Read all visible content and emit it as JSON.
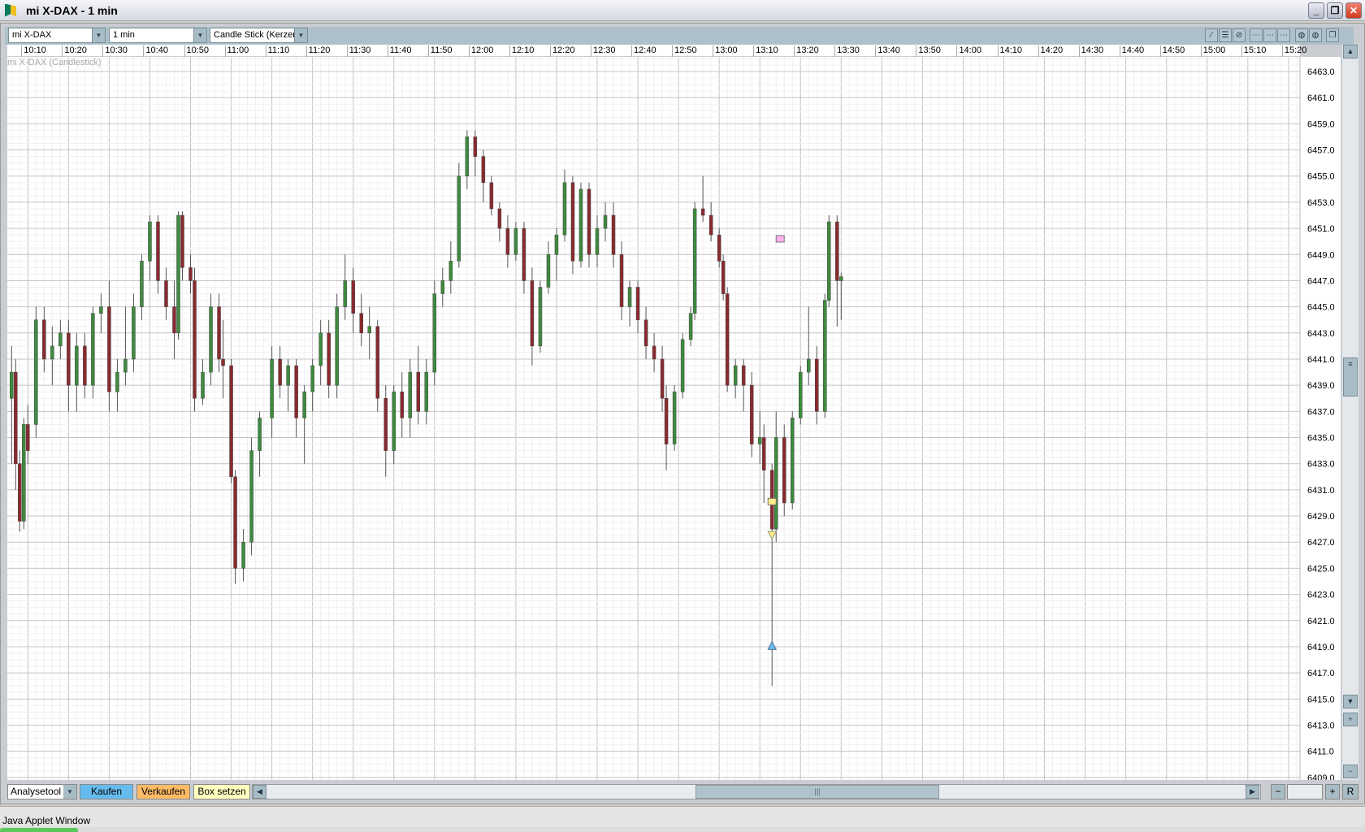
{
  "window": {
    "title": "mi X-DAX - 1 min",
    "minimize": "_",
    "restore": "❐",
    "close": "✕"
  },
  "toolbar": {
    "symbol": "mi X-DAX",
    "interval": "1 min",
    "chart_type": "Candle Stick (Kerzen",
    "tool_icons": [
      "line-draw-icon",
      "horizontal-lines-icon",
      "disabled-tool-icon",
      "grid-1-icon",
      "grid-2-icon",
      "grid-3-icon",
      "circle-icon-1",
      "circle-icon-2",
      "detach-window-icon"
    ]
  },
  "bottom": {
    "analysis": "Analysetool",
    "buy": "Kaufen",
    "sell": "Verkaufen",
    "box": "Box setzen",
    "reset": "R",
    "zoom_out": "−",
    "zoom_in": "+"
  },
  "status": "Java Applet Window",
  "colors": {
    "up": "#3d8b3d",
    "down": "#8a2a2e",
    "buy": "#66bbee",
    "sell": "#ffbb66",
    "box": "#ffffc0",
    "frame": "#aec0ca"
  },
  "chart_data": {
    "type": "candlestick",
    "series_label": "mi X-DAX (Candlestick)",
    "ylim": [
      6409,
      6464
    ],
    "yticks": [
      "6463.0",
      "6461.0",
      "6459.0",
      "6457.0",
      "6455.0",
      "6453.0",
      "6451.0",
      "6449.0",
      "6447.0",
      "6445.0",
      "6443.0",
      "6441.0",
      "6439.0",
      "6437.0",
      "6435.0",
      "6433.0",
      "6431.0",
      "6429.0",
      "6427.0",
      "6425.0",
      "6423.0",
      "6421.0",
      "6419.0",
      "6417.0",
      "6415.0",
      "6413.0",
      "6411.0",
      "6409.0"
    ],
    "xticks": [
      "10:10",
      "10:20",
      "10:30",
      "10:40",
      "10:50",
      "11:00",
      "11:10",
      "11:20",
      "11:30",
      "11:40",
      "11:50",
      "12:00",
      "12:10",
      "12:20",
      "12:30",
      "12:40",
      "12:50",
      "13:00",
      "13:10",
      "13:20",
      "13:30",
      "13:40",
      "13:50",
      "14:00",
      "14:10",
      "14:20",
      "14:30",
      "14:40",
      "14:50",
      "15:00",
      "15:10",
      "15:20"
    ],
    "grid": true,
    "candles": [
      [
        "10:06",
        6438,
        6442,
        6433,
        6440
      ],
      [
        "10:07",
        6440,
        6441,
        6431,
        6433
      ],
      [
        "10:08",
        6433,
        6434,
        6427.8,
        6428.6
      ],
      [
        "10:09",
        6428.6,
        6436.5,
        6428,
        6436
      ],
      [
        "10:10",
        6436,
        6437.5,
        6433,
        6434
      ],
      [
        "10:12",
        6436,
        6445,
        6435,
        6444
      ],
      [
        "10:14",
        6444,
        6445,
        6440,
        6441
      ],
      [
        "10:16",
        6441,
        6443.5,
        6439,
        6442
      ],
      [
        "10:18",
        6442,
        6444,
        6441,
        6443
      ],
      [
        "10:20",
        6443,
        6444,
        6437,
        6439
      ],
      [
        "10:22",
        6439,
        6443,
        6437,
        6442
      ],
      [
        "10:24",
        6442,
        6443,
        6438,
        6439
      ],
      [
        "10:26",
        6439,
        6445,
        6438,
        6444.5
      ],
      [
        "10:28",
        6444.5,
        6446,
        6443,
        6445
      ],
      [
        "10:30",
        6445,
        6447,
        6437,
        6438.5
      ],
      [
        "10:32",
        6438.5,
        6441,
        6437,
        6440
      ],
      [
        "10:34",
        6440,
        6445,
        6439,
        6441
      ],
      [
        "10:36",
        6441,
        6446,
        6440,
        6445
      ],
      [
        "10:38",
        6445,
        6449,
        6444,
        6448.5
      ],
      [
        "10:40",
        6448.5,
        6452,
        6447,
        6451.5
      ],
      [
        "10:42",
        6451.5,
        6452,
        6446,
        6447
      ],
      [
        "10:44",
        6447,
        6448,
        6444,
        6445
      ],
      [
        "10:46",
        6445,
        6447,
        6441,
        6443
      ],
      [
        "10:47",
        6443,
        6452.3,
        6442.5,
        6452
      ],
      [
        "10:48",
        6452,
        6452.3,
        6447,
        6448
      ],
      [
        "10:50",
        6448,
        6449,
        6446,
        6447
      ],
      [
        "10:51",
        6447,
        6448,
        6437,
        6438
      ],
      [
        "10:53",
        6438,
        6441,
        6437.5,
        6440
      ],
      [
        "10:55",
        6440,
        6446,
        6439,
        6445
      ],
      [
        "10:57",
        6445,
        6446,
        6440,
        6441
      ],
      [
        "10:58",
        6441,
        6444,
        6438,
        6440.5
      ],
      [
        "11:00",
        6440.5,
        6441,
        6431.5,
        6432
      ],
      [
        "11:01",
        6432,
        6432.5,
        6423.8,
        6425
      ],
      [
        "11:03",
        6425,
        6428,
        6424,
        6427
      ],
      [
        "11:05",
        6427,
        6435,
        6426,
        6434
      ],
      [
        "11:07",
        6434,
        6437,
        6432,
        6436.5
      ],
      [
        "11:10",
        6436.5,
        6442,
        6435,
        6441
      ],
      [
        "11:12",
        6441,
        6442,
        6438,
        6439
      ],
      [
        "11:14",
        6439,
        6441,
        6437,
        6440.5
      ],
      [
        "11:16",
        6440.5,
        6441,
        6435,
        6436.5
      ],
      [
        "11:18",
        6436.5,
        6439,
        6433,
        6438.5
      ],
      [
        "11:20",
        6438.5,
        6441,
        6437,
        6440.5
      ],
      [
        "11:22",
        6440.5,
        6444,
        6439,
        6443
      ],
      [
        "11:24",
        6443,
        6444,
        6438,
        6439
      ],
      [
        "11:26",
        6439,
        6446,
        6438,
        6445
      ],
      [
        "11:28",
        6445,
        6449,
        6444,
        6447
      ],
      [
        "11:30",
        6447,
        6448,
        6443,
        6444.5
      ],
      [
        "11:32",
        6444.5,
        6446,
        6442,
        6443
      ],
      [
        "11:34",
        6443,
        6445,
        6441,
        6443.5
      ],
      [
        "11:36",
        6443.5,
        6444,
        6437,
        6438
      ],
      [
        "11:38",
        6438,
        6439,
        6432,
        6434
      ],
      [
        "11:40",
        6434,
        6439,
        6433,
        6438.5
      ],
      [
        "11:42",
        6438.5,
        6440,
        6435,
        6436.5
      ],
      [
        "11:44",
        6436.5,
        6441,
        6435,
        6440
      ],
      [
        "11:46",
        6440,
        6442,
        6436,
        6437
      ],
      [
        "11:48",
        6437,
        6441,
        6436,
        6440
      ],
      [
        "11:50",
        6440,
        6447,
        6439,
        6446
      ],
      [
        "11:52",
        6446,
        6448,
        6445,
        6447
      ],
      [
        "11:54",
        6447,
        6450,
        6446,
        6448.5
      ],
      [
        "11:56",
        6448.5,
        6456,
        6448,
        6455
      ],
      [
        "11:58",
        6455,
        6458.5,
        6454,
        6458
      ],
      [
        "12:00",
        6458,
        6458.5,
        6455,
        6456.5
      ],
      [
        "12:02",
        6456.5,
        6457,
        6453,
        6454.5
      ],
      [
        "12:04",
        6454.5,
        6455,
        6452,
        6452.5
      ],
      [
        "12:06",
        6452.5,
        6453,
        6450,
        6451
      ],
      [
        "12:08",
        6451,
        6452,
        6448,
        6449
      ],
      [
        "12:10",
        6449,
        6451.5,
        6448.5,
        6451
      ],
      [
        "12:12",
        6451,
        6451.5,
        6446,
        6447
      ],
      [
        "12:14",
        6447,
        6448,
        6440.5,
        6442
      ],
      [
        "12:16",
        6442,
        6447,
        6441.5,
        6446.5
      ],
      [
        "12:18",
        6446.5,
        6450,
        6446,
        6449
      ],
      [
        "12:20",
        6449,
        6451,
        6447,
        6450.5
      ],
      [
        "12:22",
        6450.5,
        6455.5,
        6450,
        6454.5
      ],
      [
        "12:24",
        6454.5,
        6455,
        6447.5,
        6448.5
      ],
      [
        "12:26",
        6448.5,
        6454.5,
        6448,
        6454
      ],
      [
        "12:28",
        6454,
        6454.5,
        6448,
        6449
      ],
      [
        "12:30",
        6449,
        6452,
        6448,
        6451
      ],
      [
        "12:32",
        6451,
        6453,
        6450,
        6452
      ],
      [
        "12:34",
        6452,
        6453,
        6448,
        6449
      ],
      [
        "12:36",
        6449,
        6450,
        6444,
        6445
      ],
      [
        "12:38",
        6445,
        6447,
        6443.5,
        6446.5
      ],
      [
        "12:40",
        6446.5,
        6447,
        6443,
        6444
      ],
      [
        "12:42",
        6444,
        6445,
        6441,
        6442
      ],
      [
        "12:44",
        6442,
        6443,
        6440,
        6441
      ],
      [
        "12:46",
        6441,
        6442,
        6437,
        6438
      ],
      [
        "12:47",
        6438,
        6439,
        6432.5,
        6434.5
      ],
      [
        "12:49",
        6434.5,
        6439,
        6434,
        6438.5
      ],
      [
        "12:51",
        6438.5,
        6443,
        6438,
        6442.5
      ],
      [
        "12:53",
        6442.5,
        6445,
        6442,
        6444.5
      ],
      [
        "12:54",
        6444.5,
        6453,
        6444,
        6452.5
      ],
      [
        "12:56",
        6452.5,
        6455,
        6451.5,
        6452
      ],
      [
        "12:58",
        6452,
        6453,
        6450,
        6450.5
      ],
      [
        "13:00",
        6450.5,
        6451,
        6448,
        6448.5
      ],
      [
        "13:01",
        6448.5,
        6449,
        6445.5,
        6446
      ],
      [
        "13:02",
        6446,
        6446.5,
        6438.5,
        6439
      ],
      [
        "13:04",
        6439,
        6441,
        6438,
        6440.5
      ],
      [
        "13:06",
        6440.5,
        6441,
        6437,
        6439
      ],
      [
        "13:08",
        6439,
        6440,
        6433.5,
        6434.5
      ],
      [
        "13:10",
        6434.5,
        6437,
        6433,
        6435
      ],
      [
        "13:11",
        6435,
        6436,
        6430,
        6432.5
      ],
      [
        "13:13",
        6432.5,
        6433,
        6416,
        6428
      ],
      [
        "13:14",
        6428,
        6437,
        6427,
        6435
      ],
      [
        "13:16",
        6435,
        6436,
        6429,
        6430
      ],
      [
        "13:18",
        6430,
        6437,
        6429.5,
        6436.5
      ],
      [
        "13:20",
        6436.5,
        6440.5,
        6436,
        6440
      ],
      [
        "13:22",
        6440,
        6445,
        6439,
        6441
      ],
      [
        "13:24",
        6441,
        6442,
        6436,
        6437
      ],
      [
        "13:26",
        6437,
        6446,
        6436.5,
        6445.5
      ],
      [
        "13:27",
        6445.5,
        6452,
        6445,
        6451.5
      ],
      [
        "13:29",
        6451.5,
        6452,
        6443.5,
        6447
      ],
      [
        "13:30",
        6447,
        6447.6,
        6444,
        6447.3
      ]
    ],
    "markers": [
      {
        "type": "box",
        "time": "13:15",
        "price": 6450.2,
        "color": "#ffb0f0"
      },
      {
        "type": "box",
        "time": "13:13",
        "price": 6430.1,
        "color": "#ffee88"
      },
      {
        "type": "triangle-down",
        "time": "13:13",
        "price": 6427.5,
        "color": "#ffee88"
      },
      {
        "type": "triangle-up",
        "time": "13:13",
        "price": 6419.1,
        "color": "#66bbee"
      }
    ]
  }
}
